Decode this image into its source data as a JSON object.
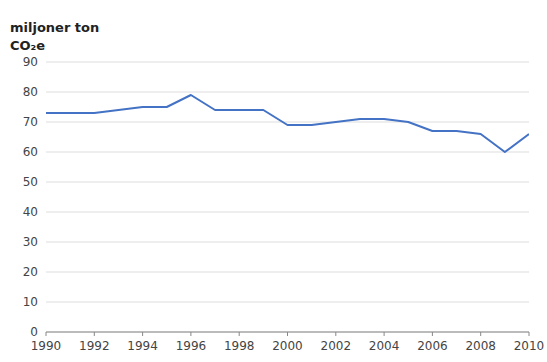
{
  "chart_data": {
    "type": "line",
    "ylabel": [
      "miljoner ton",
      "CO₂e"
    ],
    "x": [
      1990,
      1991,
      1992,
      1993,
      1994,
      1995,
      1996,
      1997,
      1998,
      1999,
      2000,
      2001,
      2002,
      2003,
      2004,
      2005,
      2006,
      2007,
      2008,
      2009,
      2010
    ],
    "values": [
      73,
      73,
      73,
      74,
      75,
      75,
      79,
      74,
      74,
      74,
      69,
      69,
      70,
      71,
      71,
      70,
      67,
      67,
      66,
      60,
      66
    ],
    "color": "#4472c4",
    "xlim": [
      1990,
      2010
    ],
    "xticks": [
      1990,
      1992,
      1994,
      1996,
      1998,
      2000,
      2002,
      2004,
      2006,
      2008,
      2010
    ],
    "ylim": [
      0,
      90
    ],
    "yticks": [
      0,
      10,
      20,
      30,
      40,
      50,
      60,
      70,
      80,
      90
    ],
    "grid": true
  }
}
